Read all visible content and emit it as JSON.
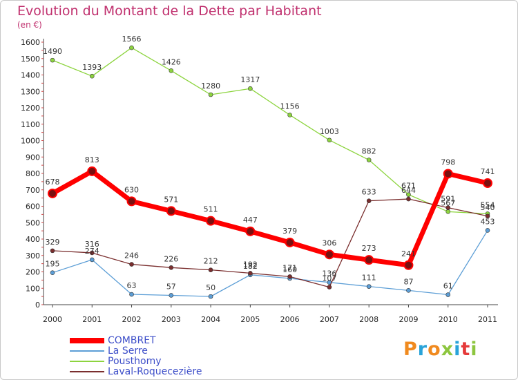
{
  "header": {
    "title": "Evolution du Montant de la Dette par Habitant",
    "subtitle": "(en €)"
  },
  "logo": {
    "text": "Proxiti",
    "colors": [
      "#f08a1f",
      "#29a3d9",
      "#f08a1f",
      "#8dc63f",
      "#29a3d9",
      "#e53a3a",
      "#8dc63f"
    ]
  },
  "chart_data": {
    "type": "line",
    "title": "Evolution du Montant de la Dette par Habitant",
    "subtitle": "(en €)",
    "xlabel": "",
    "ylabel": "",
    "ylim": [
      0,
      1600
    ],
    "yticks": [
      0,
      100,
      200,
      300,
      400,
      500,
      600,
      700,
      800,
      900,
      1000,
      1100,
      1200,
      1300,
      1400,
      1500,
      1600
    ],
    "x": [
      "2000",
      "2001",
      "2002",
      "2003",
      "2004",
      "2005",
      "2006",
      "2007",
      "2008",
      "2009",
      "2010",
      "2011"
    ],
    "grid": false,
    "legend_position": "bottom-left",
    "series": [
      {
        "name": "Pousthomy",
        "color": "#8dd43f",
        "values": [
          1490,
          1393,
          1566,
          1426,
          1280,
          1317,
          1156,
          1003,
          882,
          671,
          567,
          554
        ]
      },
      {
        "name": "La Serre",
        "color": "#5c9ed6",
        "values": [
          195,
          274,
          63,
          57,
          50,
          182,
          160,
          136,
          111,
          87,
          61,
          453
        ]
      },
      {
        "name": "Laval-Roquecezière",
        "color": "#7a2e2e",
        "values": [
          329,
          316,
          246,
          226,
          212,
          192,
          171,
          107,
          633,
          644,
          591,
          540
        ]
      },
      {
        "name": "COMBRET",
        "color": "#ff0000",
        "values": [
          678,
          813,
          630,
          571,
          511,
          447,
          379,
          306,
          273,
          241,
          798,
          741
        ]
      }
    ],
    "legend_order": [
      "COMBRET",
      "La Serre",
      "Pousthomy",
      "Laval-Roquecezière"
    ]
  }
}
